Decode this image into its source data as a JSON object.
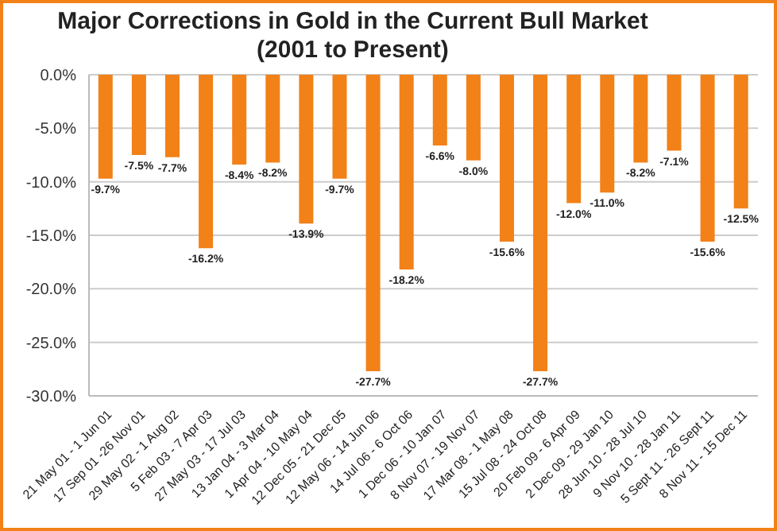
{
  "chart_data": {
    "type": "bar",
    "title": "Major Corrections in Gold in the Current Bull Market",
    "subtitle": "(2001 to Present)",
    "categories": [
      "21 May 01 - 1 Jun 01",
      "17 Sep 01 -26 Nov 01",
      "29 May 02 - 1 Aug 02",
      "5 Feb 03 - 7 Apr 03",
      "27 May 03 - 17 Jul 03",
      "13 Jan 04 - 3 Mar 04",
      "1 Apr 04 - 10 May 04",
      "12 Dec 05 - 21 Dec 05",
      "12 May 06 - 14 Jun 06",
      "14 Jul 06 - 6 Oct 06",
      "1 Dec 06 - 10 Jan 07",
      "8 Nov 07 - 19 Nov 07",
      "17 Mar 08 - 1 May 08",
      "15 Jul 08 - 24 Oct 08",
      "20 Feb 09 - 6 Apr 09",
      "2 Dec 09 - 29 Jan 10",
      "28 Jun 10 - 28 Jul 10",
      "9 Nov 10 - 28 Jan 11",
      "5 Sept 11 - 26 Sept 11",
      "8 Nov 11 - 15 Dec 11"
    ],
    "values": [
      -9.7,
      -7.5,
      -7.7,
      -16.2,
      -8.4,
      -8.2,
      -13.9,
      -9.7,
      -27.7,
      -18.2,
      -6.6,
      -8.0,
      -15.6,
      -27.7,
      -12.0,
      -11.0,
      -8.2,
      -7.1,
      -15.6,
      -12.5
    ],
    "value_labels": [
      "-9.7%",
      "-7.5%",
      "-7.7%",
      "-16.2%",
      "-8.4%",
      "-8.2%",
      "-13.9%",
      "-9.7%",
      "-27.7%",
      "-18.2%",
      "-6.6%",
      "-8.0%",
      "-15.6%",
      "-27.7%",
      "-12.0%",
      "-11.0%",
      "-8.2%",
      "-7.1%",
      "-15.6%",
      "-12.5%"
    ],
    "color": "#f28118",
    "ylim": [
      -30,
      0
    ],
    "yticks": [
      {
        "value": -30,
        "label": "-30.0%"
      },
      {
        "value": -25,
        "label": "-25.0%"
      },
      {
        "value": -20,
        "label": "-20.0%"
      },
      {
        "value": -15,
        "label": "-15.0%"
      },
      {
        "value": -10,
        "label": "-10.0%"
      },
      {
        "value": -5,
        "label": "-5.0%"
      },
      {
        "value": 0,
        "label": "0.0%"
      }
    ],
    "grid": "y",
    "legend": false
  }
}
